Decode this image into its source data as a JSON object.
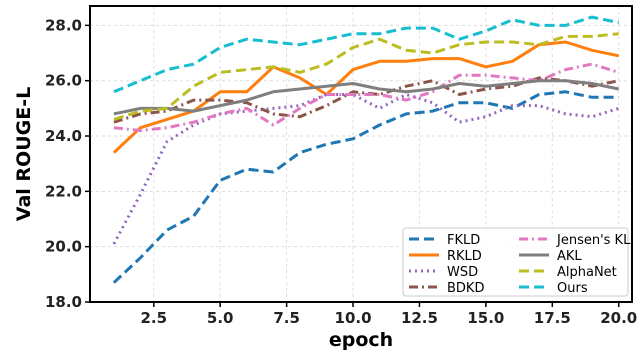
{
  "chart_data": {
    "type": "line",
    "xlabel": "epoch",
    "ylabel": "Val ROUGE-L",
    "xlim": [
      0.1,
      20.5
    ],
    "ylim": [
      18.0,
      28.7
    ],
    "xticks": [
      2.5,
      5.0,
      7.5,
      10.0,
      12.5,
      15.0,
      17.5,
      20.0
    ],
    "xtick_labels": [
      "2.5",
      "5.0",
      "7.5",
      "10.0",
      "12.5",
      "15.0",
      "17.5",
      "20.0"
    ],
    "yticks": [
      18.0,
      20.0,
      22.0,
      24.0,
      26.0,
      28.0
    ],
    "ytick_labels": [
      "18.0",
      "20.0",
      "22.0",
      "24.0",
      "26.0",
      "28.0"
    ],
    "grid": true,
    "legend_position": "bottom-right",
    "x": [
      1,
      2,
      3,
      4,
      5,
      6,
      7,
      8,
      9,
      10,
      11,
      12,
      13,
      14,
      15,
      16,
      17,
      18,
      19,
      20
    ],
    "series": [
      {
        "name": "FKLD",
        "color": "#1f77b4",
        "dash": "dashed",
        "values": [
          18.7,
          19.6,
          20.6,
          21.1,
          22.4,
          22.8,
          22.7,
          23.4,
          23.7,
          23.9,
          24.4,
          24.8,
          24.9,
          25.2,
          25.2,
          25.0,
          25.5,
          25.6,
          25.4,
          25.4
        ]
      },
      {
        "name": "RKLD",
        "color": "#ff7f0e",
        "dash": "solid",
        "values": [
          23.4,
          24.3,
          24.6,
          24.9,
          25.6,
          25.6,
          26.5,
          26.1,
          25.5,
          26.4,
          26.7,
          26.7,
          26.8,
          26.8,
          26.5,
          26.7,
          27.3,
          27.4,
          27.1,
          26.9
        ]
      },
      {
        "name": "WSD",
        "color": "#9467bd",
        "dash": "dotted",
        "values": [
          20.1,
          21.9,
          23.8,
          24.4,
          24.8,
          24.9,
          25.0,
          25.1,
          25.5,
          25.5,
          25.0,
          25.5,
          25.2,
          24.5,
          24.7,
          25.1,
          25.1,
          24.8,
          24.7,
          25.0
        ]
      },
      {
        "name": "BDKD",
        "color": "#8c564b",
        "dash": "dashdot",
        "values": [
          24.5,
          24.8,
          24.9,
          25.3,
          25.3,
          25.2,
          24.8,
          24.7,
          25.1,
          25.6,
          25.5,
          25.8,
          26.0,
          25.5,
          25.7,
          25.8,
          26.1,
          26.0,
          25.8,
          26.0
        ]
      },
      {
        "name": "Jensen's KL",
        "color": "#e377c2",
        "dash": "dashdot",
        "values": [
          24.3,
          24.2,
          24.3,
          24.5,
          24.8,
          25.0,
          24.4,
          25.0,
          25.5,
          25.5,
          25.5,
          25.3,
          25.6,
          26.2,
          26.2,
          26.1,
          26.0,
          26.4,
          26.6,
          26.3
        ]
      },
      {
        "name": "AKL",
        "color": "#7f7f7f",
        "dash": "solid",
        "values": [
          24.8,
          25.0,
          25.0,
          24.9,
          25.1,
          25.3,
          25.6,
          25.7,
          25.8,
          25.9,
          25.7,
          25.6,
          25.7,
          25.9,
          25.8,
          25.9,
          26.0,
          26.0,
          25.9,
          25.7
        ]
      },
      {
        "name": "AlphaNet",
        "color": "#bcbd22",
        "dash": "dashed",
        "values": [
          24.6,
          24.9,
          25.0,
          25.8,
          26.3,
          26.4,
          26.5,
          26.3,
          26.6,
          27.2,
          27.5,
          27.1,
          27.0,
          27.3,
          27.4,
          27.4,
          27.3,
          27.6,
          27.6,
          27.7
        ]
      },
      {
        "name": "Ours",
        "color": "#17becf",
        "dash": "dashed",
        "values": [
          25.6,
          26.0,
          26.4,
          26.6,
          27.2,
          27.5,
          27.4,
          27.3,
          27.5,
          27.7,
          27.7,
          27.9,
          27.9,
          27.5,
          27.8,
          28.2,
          28.0,
          28.0,
          28.3,
          28.1
        ]
      }
    ]
  }
}
